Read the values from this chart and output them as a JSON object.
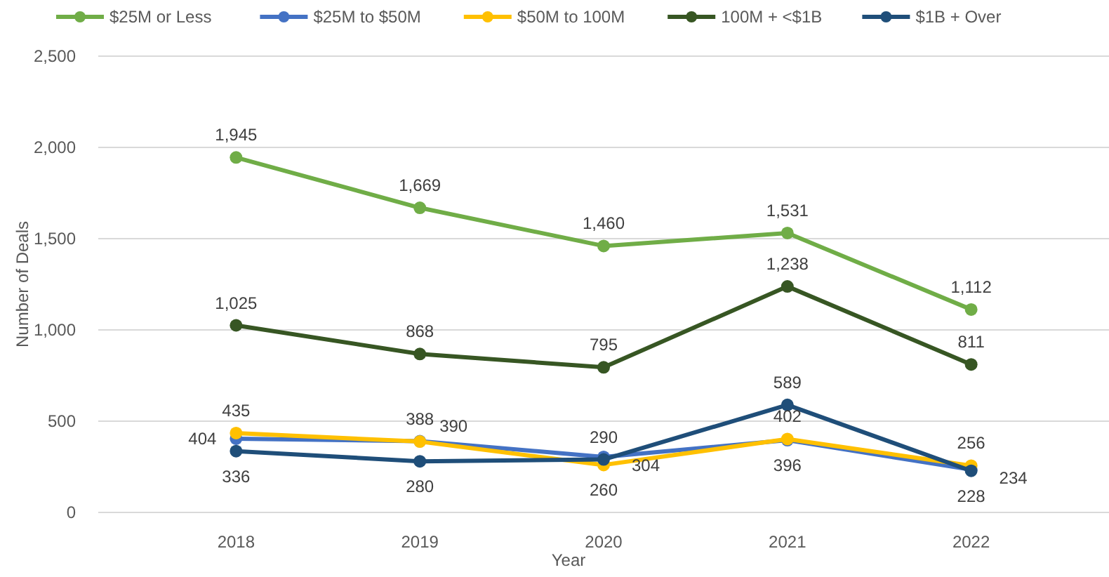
{
  "chart_data": {
    "type": "line",
    "xlabel": "Year",
    "ylabel": "Number of Deals",
    "categories": [
      "2018",
      "2019",
      "2020",
      "2021",
      "2022"
    ],
    "series": [
      {
        "name": "$25M or Less",
        "color": "#70ad47",
        "values": [
          1945,
          1669,
          1460,
          1531,
          1112
        ],
        "value_labels": [
          "1,945",
          "1,669",
          "1,460",
          "1,531",
          "1,112"
        ]
      },
      {
        "name": "$25M to $50M",
        "color": "#4472c4",
        "values": [
          404,
          390,
          304,
          396,
          234
        ],
        "value_labels": [
          "404",
          "390",
          "304",
          "396",
          "234"
        ]
      },
      {
        "name": "$50M to 100M",
        "color": "#ffc000",
        "values": [
          435,
          388,
          260,
          402,
          256
        ],
        "value_labels": [
          "435",
          "388",
          "260",
          "402",
          "256"
        ]
      },
      {
        "name": "100M + <$1B",
        "color": "#375623",
        "values": [
          1025,
          868,
          795,
          1238,
          811
        ],
        "value_labels": [
          "1,025",
          "868",
          "795",
          "1,238",
          "811"
        ]
      },
      {
        "name": "$1B + Over",
        "color": "#1f4e79",
        "values": [
          336,
          280,
          290,
          589,
          228
        ],
        "value_labels": [
          "336",
          "280",
          "290",
          "589",
          "228"
        ]
      }
    ],
    "ylim": [
      0,
      2500
    ],
    "yticks": [
      {
        "value": 0,
        "label": "0"
      },
      {
        "value": 500,
        "label": "500"
      },
      {
        "value": 1000,
        "label": "1,000"
      },
      {
        "value": 1500,
        "label": "1,500"
      },
      {
        "value": 2000,
        "label": "2,000"
      },
      {
        "value": 2500,
        "label": "2,500"
      }
    ],
    "grid": "y",
    "legend": "top",
    "marker": "circle",
    "line_style": "solid"
  }
}
